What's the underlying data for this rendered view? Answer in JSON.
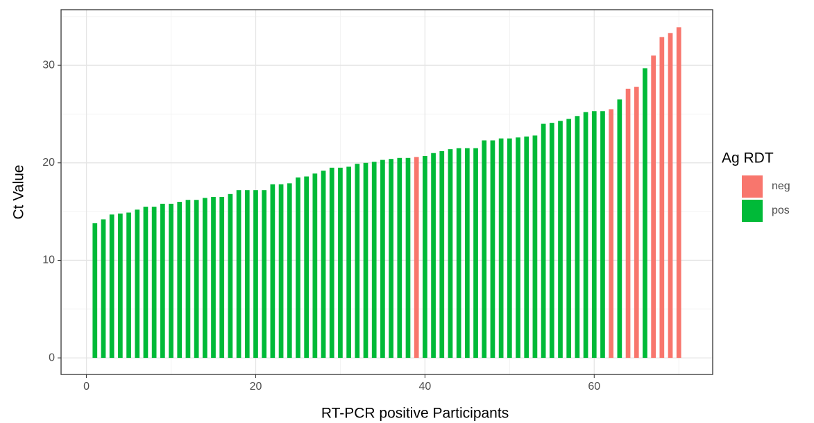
{
  "chart_data": {
    "type": "bar",
    "xlabel": "RT-PCR positive Participants",
    "ylabel": "Ct Value",
    "legend_title": "Ag RDT",
    "legend_position": "right",
    "grid": true,
    "xlim": [
      -3,
      74
    ],
    "ylim": [
      -1.7,
      35.7
    ],
    "xticks": [
      0,
      20,
      40,
      60
    ],
    "yticks": [
      0,
      10,
      20,
      30
    ],
    "xminor": [
      10,
      30,
      50,
      70
    ],
    "yminor": [
      5,
      15,
      25,
      35
    ],
    "series": [
      {
        "name": "neg",
        "color": "#f8766d",
        "x": [
          39,
          62,
          64,
          65,
          67,
          68,
          69,
          70
        ],
        "values": [
          20.6,
          25.5,
          27.6,
          27.8,
          31.0,
          32.9,
          33.3,
          33.9
        ]
      },
      {
        "name": "pos",
        "color": "#00ba38",
        "x": [
          1,
          2,
          3,
          4,
          5,
          6,
          7,
          8,
          9,
          10,
          11,
          12,
          13,
          14,
          15,
          16,
          17,
          18,
          19,
          20,
          21,
          22,
          23,
          24,
          25,
          26,
          27,
          28,
          29,
          30,
          31,
          32,
          33,
          34,
          35,
          36,
          37,
          38,
          40,
          41,
          42,
          43,
          44,
          45,
          46,
          47,
          48,
          49,
          50,
          51,
          52,
          53,
          54,
          55,
          56,
          57,
          58,
          59,
          60,
          61,
          63,
          66
        ],
        "values": [
          13.8,
          14.2,
          14.7,
          14.8,
          14.9,
          15.2,
          15.5,
          15.5,
          15.8,
          15.8,
          16.0,
          16.2,
          16.2,
          16.4,
          16.5,
          16.5,
          16.8,
          17.2,
          17.2,
          17.2,
          17.2,
          17.8,
          17.8,
          17.9,
          18.5,
          18.6,
          18.9,
          19.2,
          19.5,
          19.5,
          19.6,
          19.9,
          20.0,
          20.1,
          20.3,
          20.4,
          20.5,
          20.5,
          20.7,
          21.0,
          21.2,
          21.4,
          21.5,
          21.5,
          21.5,
          22.3,
          22.3,
          22.5,
          22.5,
          22.6,
          22.7,
          22.8,
          24.0,
          24.1,
          24.3,
          24.5,
          24.8,
          25.2,
          25.3,
          25.3,
          26.5,
          29.7
        ]
      }
    ]
  }
}
